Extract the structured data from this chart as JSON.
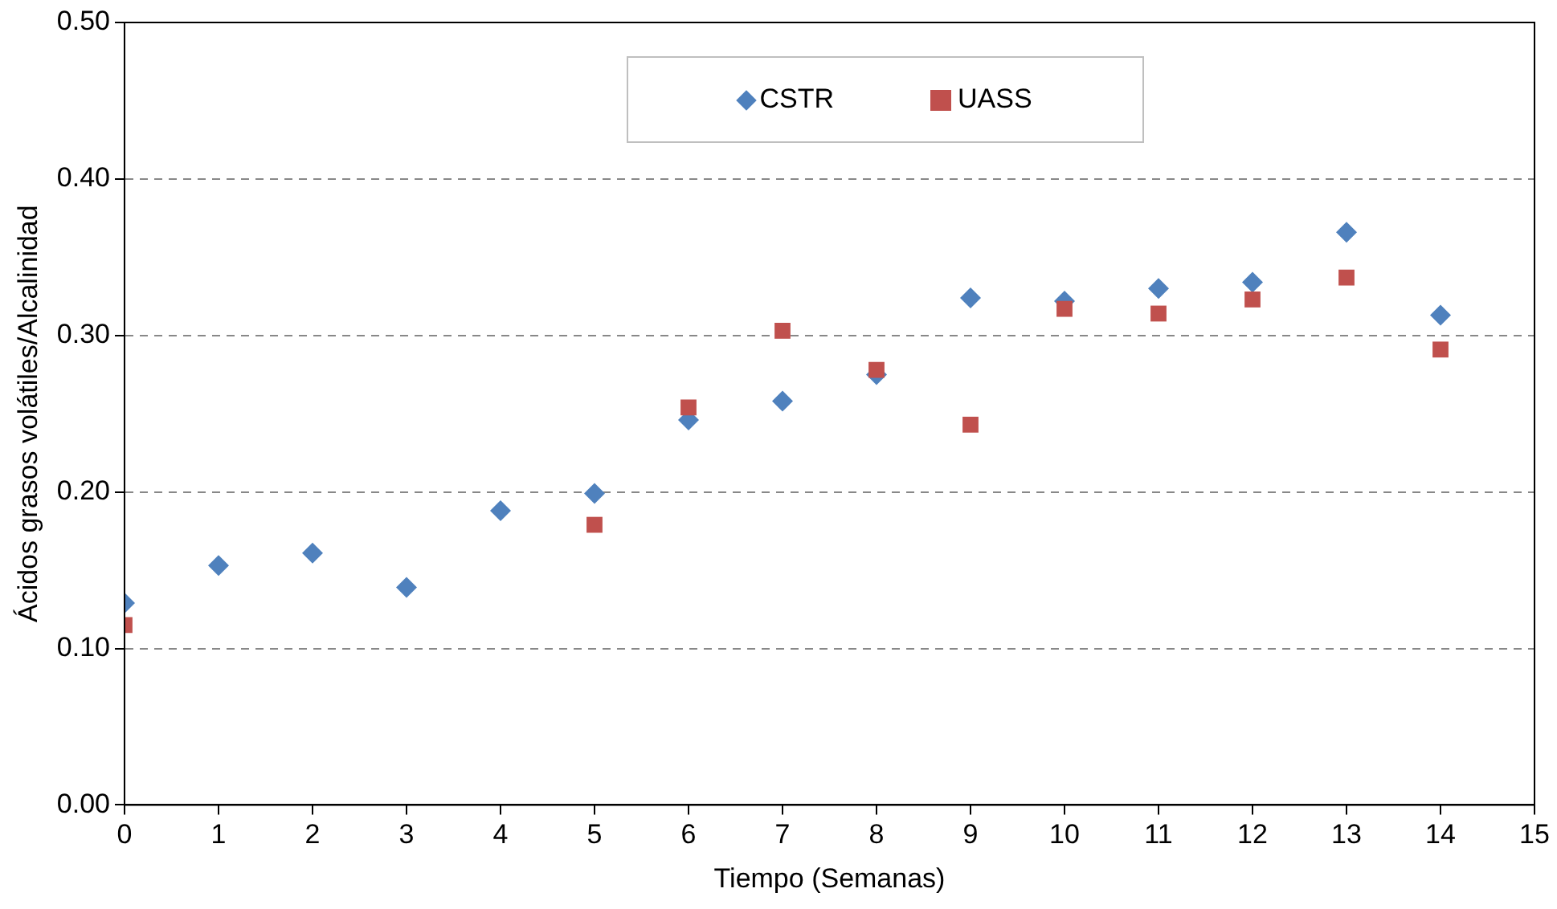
{
  "chart_data": {
    "type": "scatter",
    "xlabel": "Tiempo (Semanas)",
    "ylabel": "Ácidos grasos volátiles/Alcalinidad",
    "xlim": [
      0,
      15
    ],
    "xticks": [
      0,
      1,
      2,
      3,
      4,
      5,
      6,
      7,
      8,
      9,
      10,
      11,
      12,
      13,
      14,
      15
    ],
    "ylim": [
      0,
      0.5
    ],
    "yticks": [
      {
        "value": 0,
        "label": "0.00"
      },
      {
        "value": 0.1,
        "label": "0.10"
      },
      {
        "value": 0.2,
        "label": "0.20"
      },
      {
        "value": 0.3,
        "label": "0.30"
      },
      {
        "value": 0.4,
        "label": "0.40"
      },
      {
        "value": 0.5,
        "label": "0.50"
      }
    ],
    "grid": "y",
    "legend": "top",
    "series": [
      {
        "name": "CSTR",
        "color": "#4f81bd",
        "marker": "diamond",
        "x": [
          0,
          1,
          2,
          3,
          4,
          5,
          6,
          7,
          8,
          9,
          10,
          11,
          12,
          13,
          14
        ],
        "values": [
          0.129,
          0.153,
          0.161,
          0.139,
          0.188,
          0.199,
          0.246,
          0.258,
          0.275,
          0.324,
          0.322,
          0.33,
          0.334,
          0.366,
          0.313
        ]
      },
      {
        "name": "UASS",
        "color": "#c0504d",
        "marker": "square",
        "x": [
          0,
          5,
          6,
          7,
          8,
          9,
          10,
          11,
          12,
          13,
          14
        ],
        "values": [
          0.115,
          0.179,
          0.254,
          0.303,
          0.278,
          0.243,
          0.317,
          0.314,
          0.323,
          0.337,
          0.291
        ]
      }
    ]
  }
}
